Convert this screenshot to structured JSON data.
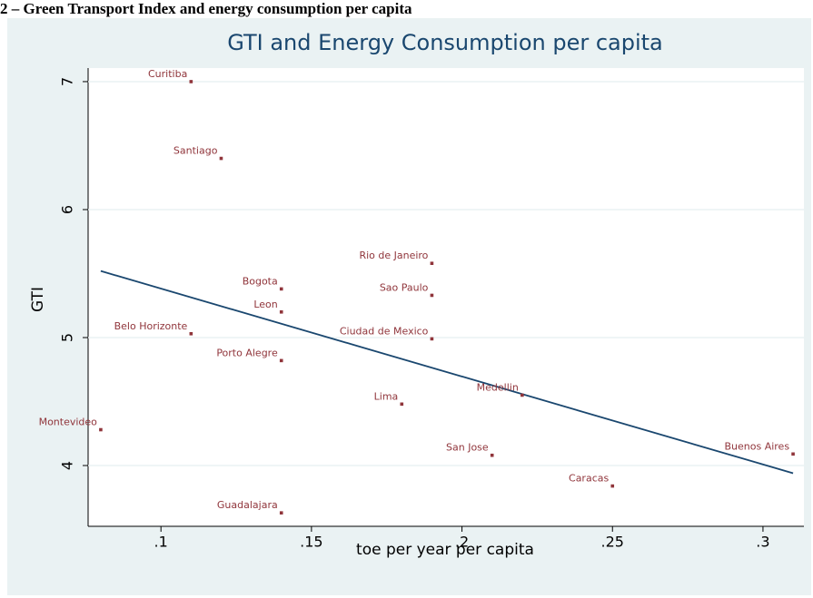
{
  "caption": "2 – Green Transport Index and energy consumption per capita",
  "chart_data": {
    "type": "scatter",
    "title": "GTI and Energy Consumption per capita",
    "xlabel": "toe per year per capita",
    "ylabel": "GTI",
    "labels": [
      "Curitiba",
      "Santiago",
      "Rio de Janeiro",
      "Bogota",
      "Sao Paulo",
      "Leon",
      "Belo Horizonte",
      "Ciudad de Mexico",
      "Porto Alegre",
      "Medellin",
      "Lima",
      "Montevideo",
      "Buenos Aires",
      "San Jose",
      "Caracas",
      "Guadalajara"
    ],
    "x": [
      0.11,
      0.12,
      0.19,
      0.14,
      0.19,
      0.14,
      0.11,
      0.19,
      0.14,
      0.22,
      0.18,
      0.08,
      0.31,
      0.21,
      0.25,
      0.14
    ],
    "values": [
      7.0,
      6.4,
      5.58,
      5.38,
      5.33,
      5.2,
      5.03,
      4.99,
      4.82,
      4.55,
      4.48,
      4.28,
      4.09,
      4.08,
      3.84,
      3.63
    ],
    "color": "#90353b",
    "fit_x": [
      0.08,
      0.31
    ],
    "fit_values": [
      5.52,
      3.94
    ],
    "fit_color": "#1a476f",
    "xlim": [
      0.0758,
      0.3136
    ],
    "ylim": [
      3.525,
      7.106
    ],
    "xticks": [
      {
        "value": 0.1,
        "label": ".1"
      },
      {
        "value": 0.15,
        "label": ".15"
      },
      {
        "value": 0.2,
        "label": ".2"
      },
      {
        "value": 0.25,
        "label": ".25"
      },
      {
        "value": 0.3,
        "label": ".3"
      }
    ],
    "yticks": [
      4,
      5,
      6,
      7
    ],
    "grid": true
  }
}
